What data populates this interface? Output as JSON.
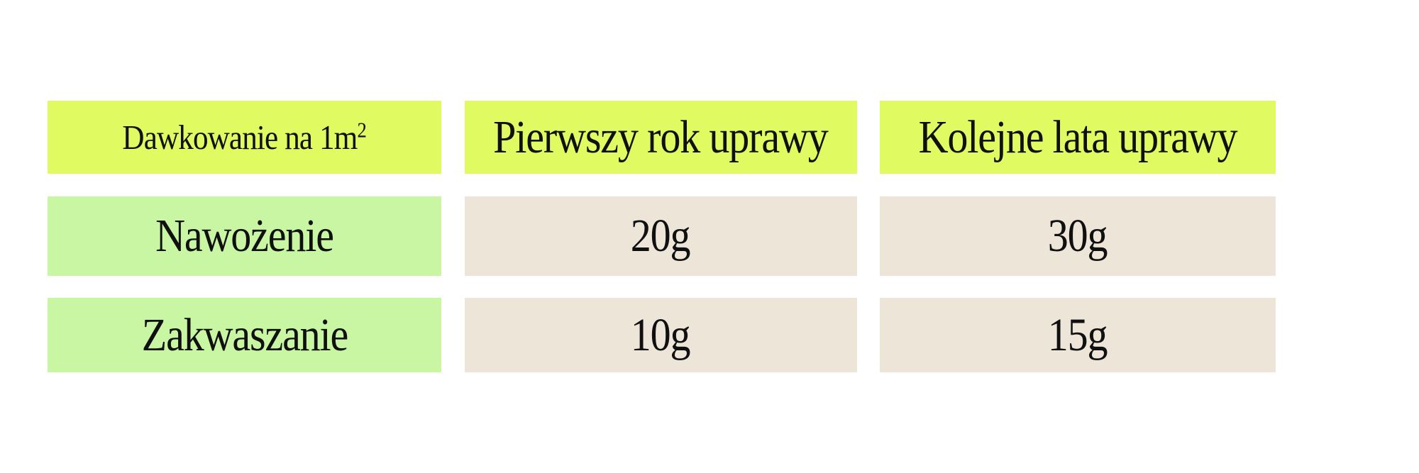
{
  "table": {
    "header": {
      "dosage_label": "Dawkowanie na 1m",
      "dosage_superscript": "2",
      "col_first_year": "Pierwszy rok uprawy",
      "col_following_years": "Kolejne lata uprawy"
    },
    "rows": [
      {
        "label": "Nawożenie",
        "first_year": "20g",
        "following_years": "30g"
      },
      {
        "label": "Zakwaszanie",
        "first_year": "10g",
        "following_years": "15g"
      }
    ],
    "colors": {
      "header_bg": "#e0fa62",
      "label_bg": "#c9f6a3",
      "value_bg": "#ede5d8",
      "text_color": "#101010"
    }
  },
  "chart_data": {
    "type": "table",
    "title": "Dawkowanie na 1m²",
    "columns": [
      "Dawkowanie na 1m²",
      "Pierwszy rok uprawy",
      "Kolejne lata uprawy"
    ],
    "rows": [
      [
        "Nawożenie",
        "20g",
        "30g"
      ],
      [
        "Zakwaszanie",
        "10g",
        "15g"
      ]
    ],
    "units": "g",
    "values": {
      "Nawożenie": {
        "pierwszy_rok": 20,
        "kolejne_lata": 30
      },
      "Zakwaszanie": {
        "pierwszy_rok": 10,
        "kolejne_lata": 15
      }
    }
  }
}
